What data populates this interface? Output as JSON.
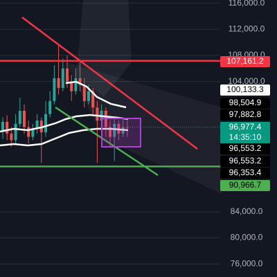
{
  "chart_data": {
    "type": "candlestick",
    "ylim": [
      74000,
      116500
    ],
    "yticks": [
      {
        "value": 116000,
        "label": "116,000.0"
      },
      {
        "value": 112000,
        "label": "112,000.0"
      },
      {
        "value": 108000,
        "label": "108,000.0"
      },
      {
        "value": 104000,
        "label": "104,000.0"
      },
      {
        "value": 84000,
        "label": "84,000.0"
      },
      {
        "value": 80000,
        "label": "80,000.0"
      },
      {
        "value": 76000,
        "label": "76,000.0"
      }
    ],
    "grid": true,
    "up_color": "#26a69a",
    "down_color": "#ef5350",
    "open": [
      96500,
      97800,
      96000,
      95000,
      97500,
      99500,
      97000,
      95500,
      96800,
      98000,
      96200,
      99000,
      101000,
      104500,
      103000,
      106000,
      104000,
      102500,
      104500,
      103500,
      101000,
      102500,
      100000,
      98000,
      99500,
      97000,
      95500,
      97500,
      96000,
      97000
    ],
    "close": [
      97800,
      96000,
      95000,
      97500,
      99500,
      97000,
      95500,
      96800,
      98000,
      96200,
      99000,
      101000,
      104500,
      103000,
      106000,
      104000,
      102500,
      104500,
      103500,
      101000,
      102500,
      100000,
      98000,
      99500,
      97000,
      95500,
      97500,
      96000,
      97000,
      96977.4
    ],
    "high": [
      98500,
      98800,
      97000,
      99000,
      101500,
      100500,
      98000,
      97500,
      99000,
      98500,
      101000,
      102500,
      106500,
      109500,
      107500,
      108000,
      105000,
      106000,
      107000,
      104500,
      103500,
      103000,
      101000,
      100500,
      100000,
      98000,
      98500,
      98000,
      98000,
      98000
    ],
    "low": [
      95200,
      95000,
      94000,
      94500,
      97000,
      96000,
      94500,
      95000,
      96000,
      91500,
      95500,
      98500,
      100500,
      102000,
      102500,
      103000,
      101000,
      102000,
      102500,
      100000,
      100500,
      99000,
      91500,
      97000,
      95500,
      94000,
      91800,
      95000,
      95500,
      95500
    ],
    "price_labels": [
      {
        "value": 107161.2,
        "label": "107,161.2",
        "color": "#f23645",
        "text_color": "#ffffff"
      },
      {
        "value": 100133.3,
        "label": "100,133.3",
        "color": "#ffffff",
        "text_color": "#000000"
      },
      {
        "value": 98504.9,
        "label": "98,504.9",
        "color": "#000000",
        "text_color": "#ffffff"
      },
      {
        "value": 97882.8,
        "label": "97,882.8",
        "color": "#000000",
        "text_color": "#ffffff"
      },
      {
        "value": 96977.4,
        "label": "96,977.4",
        "color": "#089981",
        "text_color": "#ffffff"
      },
      {
        "label": "14:35:10",
        "color": "#089981",
        "text_color": "#ffffff"
      },
      {
        "value": 96553.2,
        "label": "96,553.2",
        "color": "#000000",
        "text_color": "#ffffff"
      },
      {
        "value": 96553.2,
        "label": "96,553.2",
        "color": "#000000",
        "text_color": "#ffffff"
      },
      {
        "value": 96353.4,
        "label": "96,353.4",
        "color": "#000000",
        "text_color": "#ffffff"
      },
      {
        "value": 90966.7,
        "label": "90,966.7",
        "color": "#4caf50",
        "text_color": "#000000"
      }
    ]
  }
}
